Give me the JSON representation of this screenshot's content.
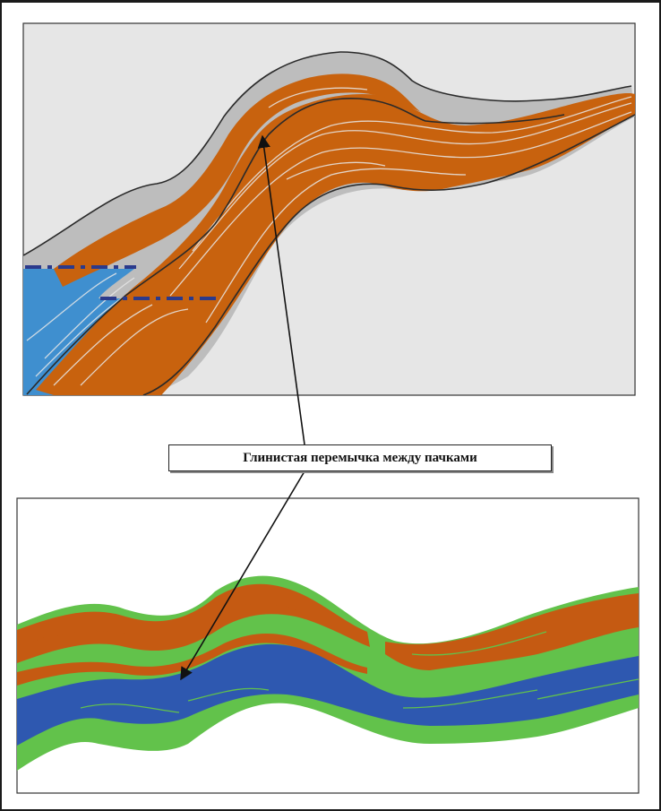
{
  "annotation": {
    "label": "Глинистая перемычка между пачками"
  },
  "colors": {
    "frame": "#1a1a1a",
    "top_panel_background": "#e6e6e6",
    "clay_gray": "#bdbdbd",
    "sand_orange": "#c8620e",
    "sand_blue": "#3f8fcf",
    "boundary_line": "#2a2a2a",
    "dashed_marker": "#2b3a8c",
    "bottom_green": "#62c24b",
    "bottom_blue": "#2e58b0",
    "bottom_orange": "#c55a12",
    "arrow": "#111111"
  }
}
